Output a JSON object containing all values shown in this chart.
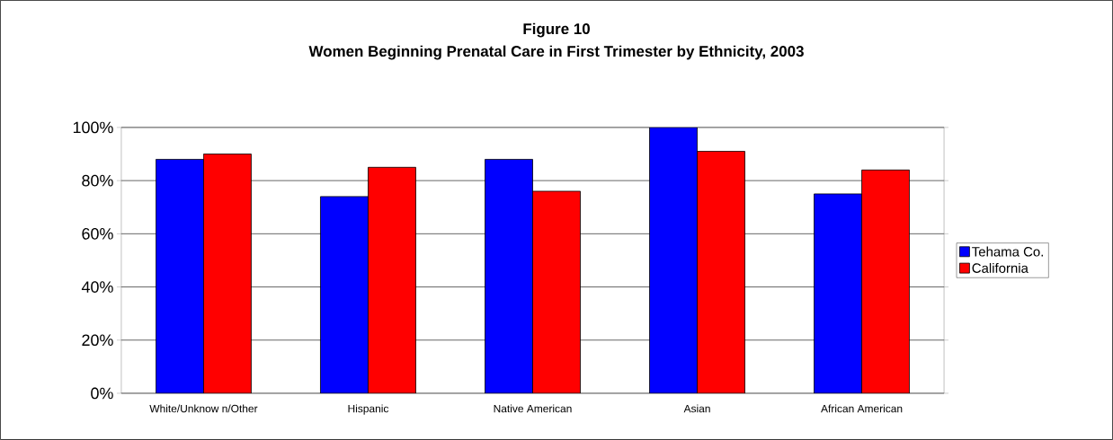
{
  "chart_data": {
    "type": "bar",
    "title": "Figure 10",
    "subtitle": "Women Beginning Prenatal Care in First Trimester by Ethnicity, 2003",
    "categories": [
      "White/Unknow n/Other",
      "Hispanic",
      "Native American",
      "Asian",
      "African American"
    ],
    "series": [
      {
        "name": "Tehama Co.",
        "color": "#0000ff",
        "values": [
          88,
          74,
          88,
          100,
          75
        ]
      },
      {
        "name": "California",
        "color": "#ff0000",
        "values": [
          90,
          85,
          76,
          91,
          84
        ]
      }
    ],
    "ylim": [
      0,
      100
    ],
    "yticks": [
      {
        "value": 0,
        "label": "0%"
      },
      {
        "value": 20,
        "label": "20%"
      },
      {
        "value": 40,
        "label": "40%"
      },
      {
        "value": 60,
        "label": "60%"
      },
      {
        "value": 80,
        "label": "80%"
      },
      {
        "value": 100,
        "label": "100%"
      }
    ],
    "grid": "y",
    "legend": "right"
  }
}
